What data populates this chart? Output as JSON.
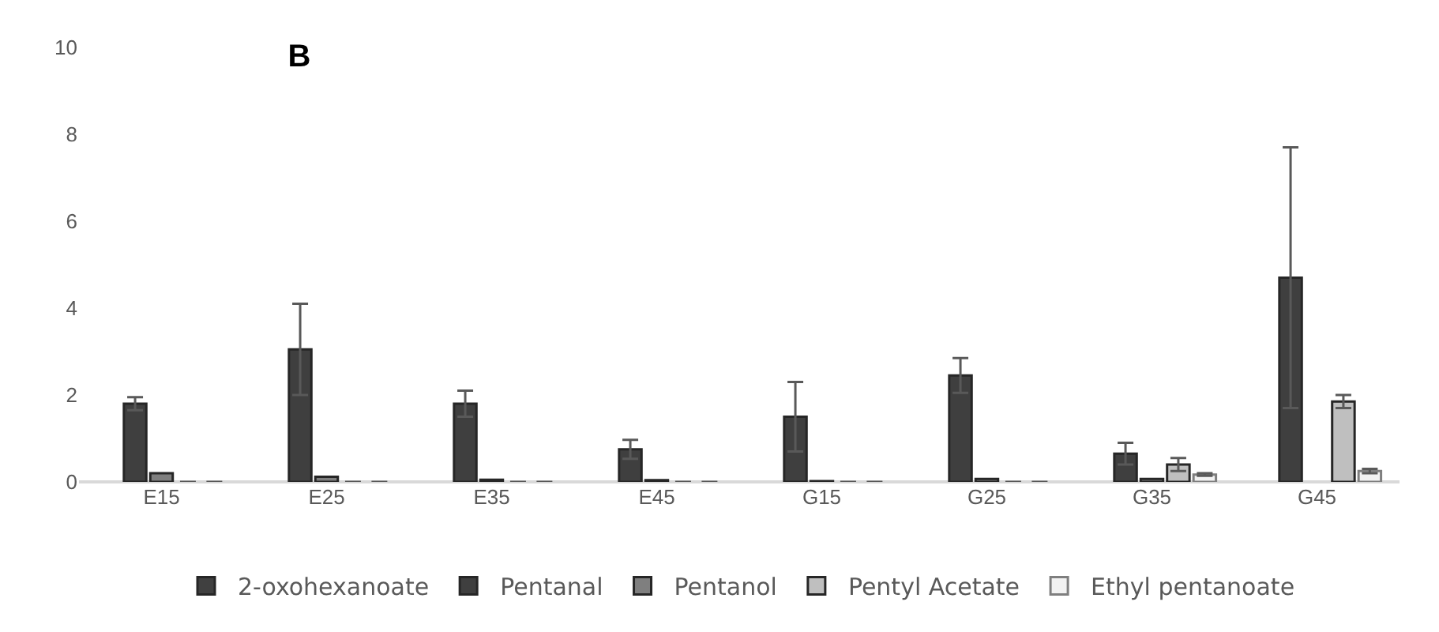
{
  "chart_data": {
    "type": "bar",
    "title": "B",
    "categories": [
      "E15",
      "E25",
      "E35",
      "E45",
      "G15",
      "G25",
      "G35",
      "G45"
    ],
    "series": [
      {
        "name": "2-oxohexanoate",
        "color": "#404040",
        "values": [
          0,
          0,
          0,
          0,
          0,
          0,
          0,
          0
        ]
      },
      {
        "name": "Pentanal",
        "color": "#3f3f3f",
        "values": [
          1.8,
          3.05,
          1.8,
          0.75,
          1.5,
          2.45,
          0.65,
          4.7
        ],
        "errors": [
          0.15,
          1.05,
          0.3,
          0.22,
          0.8,
          0.4,
          0.25,
          3.0
        ]
      },
      {
        "name": "Pentanol",
        "color": "#7f7f7f",
        "values": [
          0.2,
          0.12,
          0.05,
          0.04,
          0.02,
          0.07,
          0.07,
          0
        ]
      },
      {
        "name": "Pentyl Acetate",
        "color": "#bfbfbf",
        "values": [
          0,
          0,
          0,
          0,
          0,
          0,
          0.4,
          1.85
        ],
        "errors": [
          null,
          null,
          null,
          null,
          null,
          null,
          0.15,
          0.15
        ]
      },
      {
        "name": "Ethyl pentanoate",
        "color": "#f2f2f2",
        "values": [
          0,
          0,
          0,
          0,
          0,
          0,
          0.17,
          0.25
        ],
        "errors": [
          null,
          null,
          null,
          null,
          null,
          null,
          0.03,
          0.05
        ]
      }
    ],
    "ylim": [
      0,
      10
    ],
    "yticks": [
      0,
      2,
      4,
      6,
      8,
      10
    ],
    "grid": false,
    "legend": "bottom"
  }
}
